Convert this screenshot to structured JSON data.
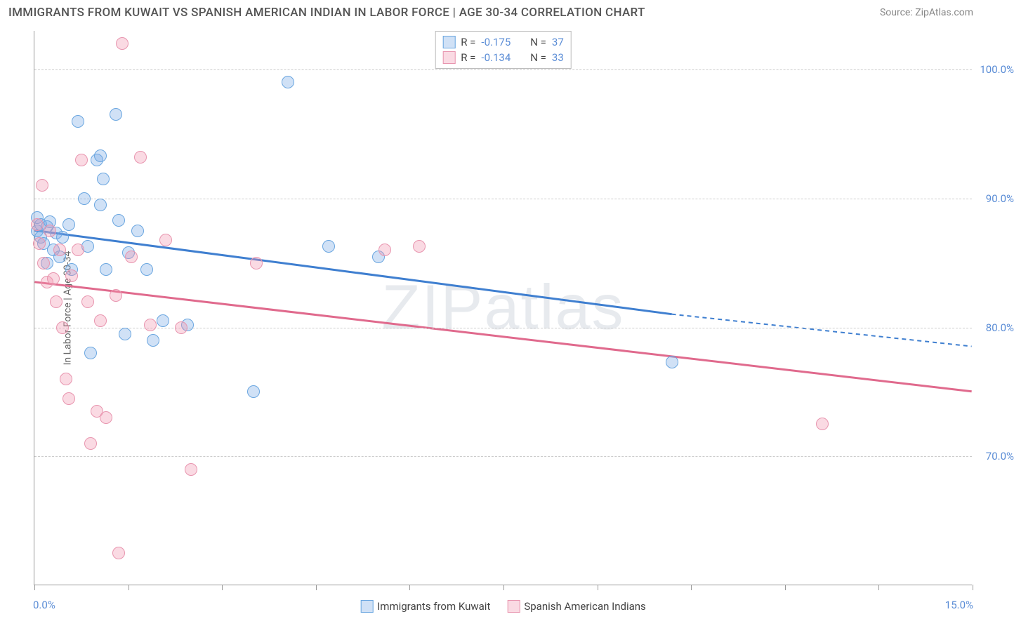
{
  "title": "IMMIGRANTS FROM KUWAIT VS SPANISH AMERICAN INDIAN IN LABOR FORCE | AGE 30-34 CORRELATION CHART",
  "source": "Source: ZipAtlas.com",
  "watermark": "ZIPatlas",
  "y_axis_title": "In Labor Force | Age 30-34",
  "x_axis": {
    "min": 0.0,
    "max": 15.0,
    "label_left": "0.0%",
    "label_right": "15.0%",
    "tick_positions_pct": [
      0,
      10,
      20,
      30,
      40,
      50,
      60,
      70,
      80,
      90,
      100
    ]
  },
  "y_axis": {
    "min": 60.0,
    "max": 103.0,
    "ticks": [
      {
        "value": 70.0,
        "label": "70.0%"
      },
      {
        "value": 80.0,
        "label": "80.0%"
      },
      {
        "value": 90.0,
        "label": "90.0%"
      },
      {
        "value": 100.0,
        "label": "100.0%"
      }
    ]
  },
  "series": [
    {
      "name": "Immigrants from Kuwait",
      "fill": "rgba(120,170,230,0.35)",
      "stroke": "#6aa6e0",
      "line_color": "#3f7fd0",
      "R": "-0.175",
      "N": "37",
      "regression": {
        "x1": 0.0,
        "y1": 87.5,
        "x2_solid": 10.2,
        "y2_solid": 81.0,
        "x2_dash": 15.0,
        "y2_dash": 78.5
      },
      "points": [
        {
          "x": 0.05,
          "y": 88.5
        },
        {
          "x": 0.05,
          "y": 87.5
        },
        {
          "x": 0.1,
          "y": 88.0
        },
        {
          "x": 0.1,
          "y": 87.0
        },
        {
          "x": 0.15,
          "y": 86.5
        },
        {
          "x": 0.2,
          "y": 87.8
        },
        {
          "x": 0.2,
          "y": 85.0
        },
        {
          "x": 0.25,
          "y": 88.2
        },
        {
          "x": 0.3,
          "y": 86.0
        },
        {
          "x": 0.35,
          "y": 87.3
        },
        {
          "x": 0.4,
          "y": 85.5
        },
        {
          "x": 0.45,
          "y": 87.0
        },
        {
          "x": 0.55,
          "y": 88.0
        },
        {
          "x": 0.6,
          "y": 84.5
        },
        {
          "x": 0.7,
          "y": 96.0
        },
        {
          "x": 0.8,
          "y": 90.0
        },
        {
          "x": 0.85,
          "y": 86.3
        },
        {
          "x": 0.9,
          "y": 78.0
        },
        {
          "x": 1.0,
          "y": 93.0
        },
        {
          "x": 1.05,
          "y": 93.3
        },
        {
          "x": 1.05,
          "y": 89.5
        },
        {
          "x": 1.1,
          "y": 91.5
        },
        {
          "x": 1.15,
          "y": 84.5
        },
        {
          "x": 1.3,
          "y": 96.5
        },
        {
          "x": 1.35,
          "y": 88.3
        },
        {
          "x": 1.45,
          "y": 79.5
        },
        {
          "x": 1.5,
          "y": 85.8
        },
        {
          "x": 1.65,
          "y": 87.5
        },
        {
          "x": 1.8,
          "y": 84.5
        },
        {
          "x": 1.9,
          "y": 79.0
        },
        {
          "x": 2.05,
          "y": 80.5
        },
        {
          "x": 2.45,
          "y": 80.2
        },
        {
          "x": 3.5,
          "y": 75.0
        },
        {
          "x": 4.05,
          "y": 99.0
        },
        {
          "x": 4.7,
          "y": 86.3
        },
        {
          "x": 5.5,
          "y": 85.5
        },
        {
          "x": 10.2,
          "y": 77.3
        }
      ]
    },
    {
      "name": "Spanish American Indians",
      "fill": "rgba(240,150,175,0.35)",
      "stroke": "#e895af",
      "line_color": "#e06a8d",
      "R": "-0.134",
      "N": "33",
      "regression": {
        "x1": 0.0,
        "y1": 83.5,
        "x2_solid": 15.0,
        "y2_solid": 75.0,
        "x2_dash": 15.0,
        "y2_dash": 75.0
      },
      "points": [
        {
          "x": 0.05,
          "y": 88.0
        },
        {
          "x": 0.08,
          "y": 86.5
        },
        {
          "x": 0.12,
          "y": 91.0
        },
        {
          "x": 0.15,
          "y": 85.0
        },
        {
          "x": 0.2,
          "y": 83.5
        },
        {
          "x": 0.25,
          "y": 87.5
        },
        {
          "x": 0.3,
          "y": 83.8
        },
        {
          "x": 0.35,
          "y": 82.0
        },
        {
          "x": 0.4,
          "y": 86.0
        },
        {
          "x": 0.45,
          "y": 80.0
        },
        {
          "x": 0.5,
          "y": 76.0
        },
        {
          "x": 0.55,
          "y": 74.5
        },
        {
          "x": 0.6,
          "y": 84.0
        },
        {
          "x": 0.7,
          "y": 86.0
        },
        {
          "x": 0.75,
          "y": 93.0
        },
        {
          "x": 0.85,
          "y": 82.0
        },
        {
          "x": 0.9,
          "y": 71.0
        },
        {
          "x": 1.0,
          "y": 73.5
        },
        {
          "x": 1.05,
          "y": 80.5
        },
        {
          "x": 1.15,
          "y": 73.0
        },
        {
          "x": 1.3,
          "y": 82.5
        },
        {
          "x": 1.35,
          "y": 62.5
        },
        {
          "x": 1.4,
          "y": 102.0
        },
        {
          "x": 1.55,
          "y": 85.5
        },
        {
          "x": 1.7,
          "y": 93.2
        },
        {
          "x": 1.85,
          "y": 80.2
        },
        {
          "x": 2.1,
          "y": 86.8
        },
        {
          "x": 2.35,
          "y": 80.0
        },
        {
          "x": 2.5,
          "y": 69.0
        },
        {
          "x": 3.55,
          "y": 85.0
        },
        {
          "x": 5.6,
          "y": 86.0
        },
        {
          "x": 6.15,
          "y": 86.3
        },
        {
          "x": 12.6,
          "y": 72.5
        }
      ]
    }
  ],
  "point_radius": 9,
  "point_stroke_width": 1.5,
  "colors": {
    "axis_label": "#5b8dd6",
    "grid": "#cccccc",
    "text": "#555555"
  }
}
